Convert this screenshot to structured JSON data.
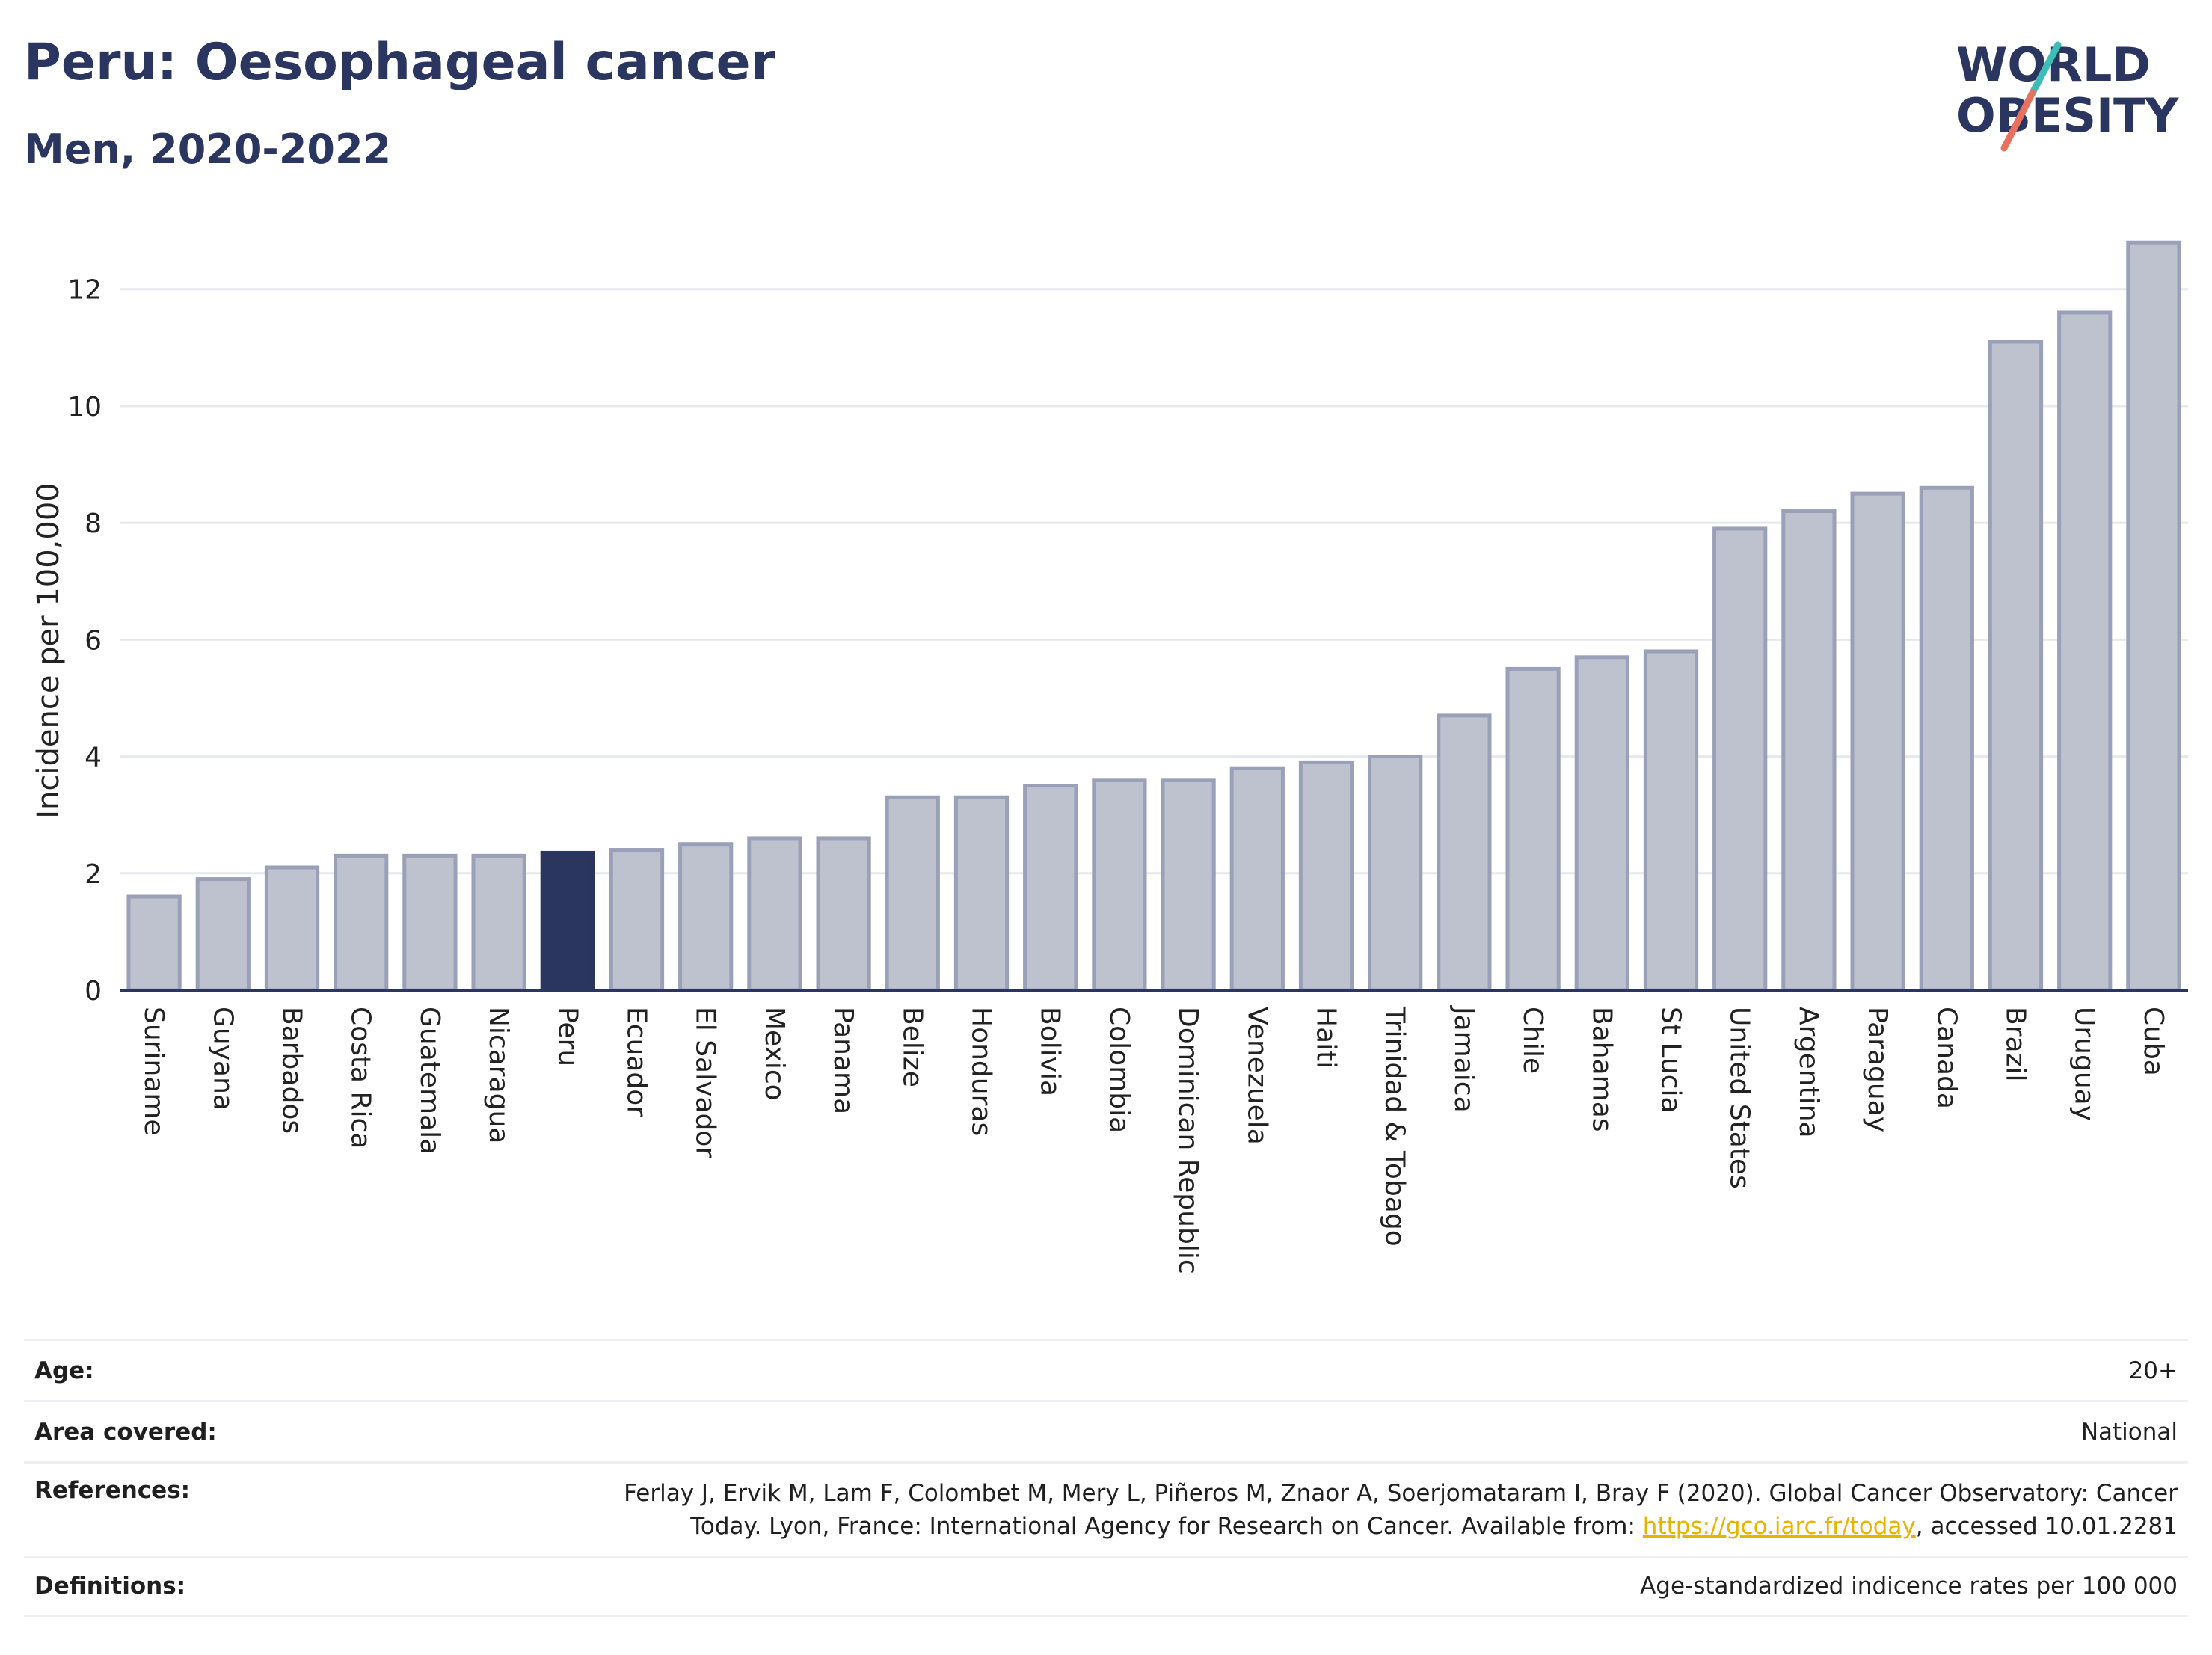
{
  "header": {
    "title": "Peru: Oesophageal cancer",
    "subtitle": "Men, 2020-2022"
  },
  "logo": {
    "line1": "WORLD",
    "line2": "OBESITY",
    "text_color": "#2a3560",
    "slash_colors": [
      "#3dbdb5",
      "#e8705f"
    ]
  },
  "chart_data": {
    "type": "bar",
    "categories": [
      "Suriname",
      "Guyana",
      "Barbados",
      "Costa Rica",
      "Guatemala",
      "Nicaragua",
      "Peru",
      "Ecuador",
      "El Salvador",
      "Mexico",
      "Panama",
      "Belize",
      "Honduras",
      "Bolivia",
      "Colombia",
      "Dominican Republic",
      "Venezuela",
      "Haiti",
      "Trinidad & Tobago",
      "Jamaica",
      "Chile",
      "Bahamas",
      "St Lucia",
      "United States",
      "Argentina",
      "Paraguay",
      "Canada",
      "Brazil",
      "Uruguay",
      "Cuba"
    ],
    "values": [
      1.6,
      1.9,
      2.1,
      2.3,
      2.3,
      2.3,
      2.35,
      2.4,
      2.5,
      2.6,
      2.6,
      3.3,
      3.3,
      3.5,
      3.6,
      3.6,
      3.8,
      3.9,
      4.0,
      4.7,
      5.5,
      5.7,
      5.8,
      7.9,
      8.2,
      8.5,
      8.6,
      11.1,
      11.6,
      12.8
    ],
    "highlight": "Peru",
    "ylabel": "Incidence per 100,000",
    "xlabel": "",
    "ylim": [
      0,
      13.2
    ],
    "yticks": [
      0,
      2,
      4,
      6,
      8,
      10,
      12
    ],
    "grid": true,
    "colors": {
      "bar_fill": "#bec2cf",
      "bar_stroke": "#9aa0b8",
      "highlight_fill": "#2a3560",
      "grid": "#e6e8ee",
      "axis": "#2a3560"
    }
  },
  "info": {
    "age": {
      "label": "Age:",
      "value": "20+"
    },
    "area": {
      "label": "Area covered:",
      "value": "National"
    },
    "references": {
      "label": "References:",
      "line1": "Ferlay J, Ervik M, Lam F, Colombet M, Mery L, Piñeros M, Znaor A, Soerjomataram I, Bray F (2020). Global Cancer Observatory: Cancer",
      "line2_before": "Today. Lyon, France: International Agency for Research on Cancer. Available from: ",
      "link": "https://gco.iarc.fr/today",
      "line2_after": ", accessed 10.01.2281"
    },
    "definitions": {
      "label": "Definitions:",
      "value": "Age-standardized indicence rates per 100 000"
    }
  }
}
